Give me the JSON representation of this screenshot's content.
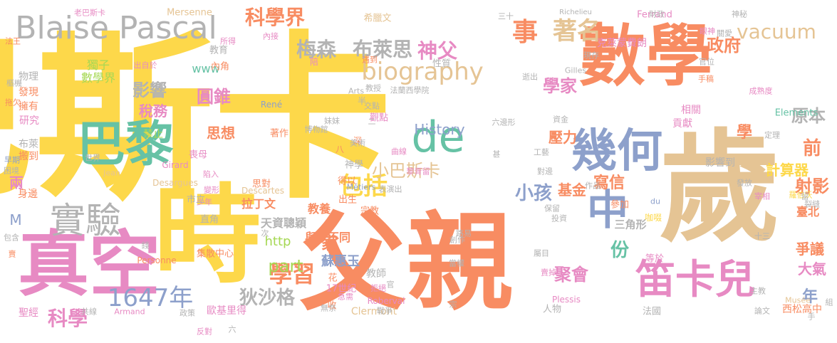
{
  "palette": {
    "yellow": "#fdd84a",
    "orange": "#f88c62",
    "pink": "#e78ac3",
    "blue": "#8da0cb",
    "tan": "#e5c494",
    "gray": "#b3b3b3",
    "green": "#66c2a5",
    "lime": "#a6d854"
  },
  "words": [
    {
      "text": "巴斯卡",
      "color": "yellow"
    },
    {
      "text": "數學",
      "color": "orange"
    },
    {
      "text": "歲",
      "color": "tan"
    },
    {
      "text": "父親",
      "color": "orange"
    },
    {
      "text": "時",
      "color": "yellow"
    },
    {
      "text": "真空",
      "color": "pink"
    },
    {
      "text": "巴黎",
      "color": "green"
    },
    {
      "text": "實驗",
      "color": "gray"
    },
    {
      "text": "Blaise Pascal",
      "color": "gray"
    },
    {
      "text": "幾何",
      "color": "blue"
    },
    {
      "text": "笛卡兒",
      "color": "pink"
    },
    {
      "text": "de",
      "color": "green"
    },
    {
      "text": "中",
      "color": "blue"
    },
    {
      "text": "biography",
      "color": "tan"
    },
    {
      "text": "1647年",
      "color": "blue"
    },
    {
      "text": "科學界",
      "color": "orange"
    },
    {
      "text": "梅森",
      "color": "gray"
    },
    {
      "text": "布萊思",
      "color": "gray"
    },
    {
      "text": "神父",
      "color": "pink"
    },
    {
      "text": "事",
      "color": "orange"
    },
    {
      "text": "著名",
      "color": "tan"
    },
    {
      "text": "政府",
      "color": "orange"
    },
    {
      "text": "vacuum",
      "color": "tan"
    },
    {
      "text": "包括",
      "color": "yellow"
    },
    {
      "text": "學習",
      "color": "orange"
    },
    {
      "text": "科學",
      "color": "pink"
    },
    {
      "text": "狄沙格",
      "color": "gray"
    },
    {
      "text": "part",
      "color": "lime"
    },
    {
      "text": "影響",
      "color": "gray"
    },
    {
      "text": "圓錐",
      "color": "pink"
    },
    {
      "text": "稅務",
      "color": "pink"
    },
    {
      "text": "數學界",
      "color": "lime"
    },
    {
      "text": "獨子",
      "color": "lime"
    },
    {
      "text": "學家",
      "color": "pink"
    },
    {
      "text": "小巴斯卡",
      "color": "tan"
    },
    {
      "text": "History",
      "color": "blue"
    },
    {
      "text": "小孩",
      "color": "blue"
    },
    {
      "text": "基金",
      "color": "orange"
    },
    {
      "text": "寫信",
      "color": "orange"
    },
    {
      "text": "原本",
      "color": "gray"
    },
    {
      "text": "計算器",
      "color": "yellow"
    },
    {
      "text": "前",
      "color": "orange"
    },
    {
      "text": "射影",
      "color": "orange"
    },
    {
      "text": "份",
      "color": "green"
    },
    {
      "text": "聚會",
      "color": "pink"
    },
    {
      "text": "爭議",
      "color": "orange"
    },
    {
      "text": "大氣",
      "color": "pink"
    },
    {
      "text": "年",
      "color": "blue"
    },
    {
      "text": "學",
      "color": "orange"
    },
    {
      "text": "壓力",
      "color": "orange"
    },
    {
      "text": "思想",
      "color": "orange"
    },
    {
      "text": "www",
      "color": "green"
    },
    {
      "text": "http",
      "color": "lime"
    },
    {
      "text": "家",
      "color": "orange"
    },
    {
      "text": "M",
      "color": "blue"
    },
    {
      "text": "兩",
      "color": "pink"
    },
    {
      "text": "蘇惠玉",
      "color": "blue"
    },
    {
      "text": "拉丁文",
      "color": "orange"
    },
    {
      "text": "教養",
      "color": "orange"
    },
    {
      "text": "天資聰穎",
      "color": "gray"
    },
    {
      "text": "與眾不同",
      "color": "orange"
    },
    {
      "text": "三角形",
      "color": "gray"
    },
    {
      "text": "西松高中",
      "color": "orange"
    },
    {
      "text": "臺北",
      "color": "orange"
    },
    {
      "text": "物理",
      "color": "gray"
    },
    {
      "text": "發現",
      "color": "orange"
    },
    {
      "text": "擁有",
      "color": "orange"
    },
    {
      "text": "研究",
      "color": "pink"
    },
    {
      "text": "布萊",
      "color": "gray"
    },
    {
      "text": "搬到",
      "color": "orange"
    },
    {
      "text": "身邊",
      "color": "orange"
    },
    {
      "text": "聖經",
      "color": "pink"
    },
    {
      "text": "歐基里得",
      "color": "pink"
    },
    {
      "text": "集散中心",
      "color": "orange"
    },
    {
      "text": "教師",
      "color": "gray"
    },
    {
      "text": "Clermont",
      "color": "tan"
    },
    {
      "text": "克萊蒙費朗",
      "color": "pink"
    },
    {
      "text": "影響到",
      "color": "gray"
    },
    {
      "text": "貢獻",
      "color": "pink"
    },
    {
      "text": "相關",
      "color": "pink"
    },
    {
      "text": "禁止",
      "color": "lime"
    },
    {
      "text": "內角",
      "color": "orange"
    },
    {
      "text": "教育",
      "color": "gray"
    },
    {
      "text": "直角",
      "color": "gray"
    },
    {
      "text": "喪母",
      "color": "pink"
    },
    {
      "text": "著作",
      "color": "orange"
    },
    {
      "text": "思對",
      "color": "orange"
    },
    {
      "text": "市立",
      "color": "gray"
    },
    {
      "text": "出生",
      "color": "orange"
    },
    {
      "text": "宗教",
      "color": "orange"
    },
    {
      "text": "花",
      "color": "orange"
    },
    {
      "text": "收",
      "color": "orange"
    },
    {
      "text": "17世紀",
      "color": "pink"
    },
    {
      "text": "人物",
      "color": "gray"
    },
    {
      "text": "法國",
      "color": "gray"
    },
    {
      "text": "等於",
      "color": "pink"
    },
    {
      "text": "觀點",
      "color": "pink"
    },
    {
      "text": "神學",
      "color": "gray"
    },
    {
      "text": "得以",
      "color": "orange"
    },
    {
      "text": "Ferrand",
      "color": "pink"
    },
    {
      "text": "Elements",
      "color": "green"
    },
    {
      "text": "Mersenne",
      "color": "tan"
    },
    {
      "text": "Richelieu",
      "color": "gray"
    },
    {
      "text": "Girard",
      "color": "pink"
    },
    {
      "text": "Descartes",
      "color": "tan"
    },
    {
      "text": "René",
      "color": "blue"
    },
    {
      "text": "Jean",
      "color": "tan"
    },
    {
      "text": "Desargues",
      "color": "tan"
    },
    {
      "text": "Roberval",
      "color": "pink"
    },
    {
      "text": "Plessis",
      "color": "pink"
    },
    {
      "text": "Armand",
      "color": "pink"
    },
    {
      "text": "Personne",
      "color": "orange"
    },
    {
      "text": "Arts",
      "color": "gray"
    },
    {
      "text": "Métiers",
      "color": "blue"
    },
    {
      "text": "Gilles",
      "color": "gray"
    },
    {
      "text": "Musée",
      "color": "tan"
    },
    {
      "text": "du",
      "color": "blue"
    },
    {
      "text": "希臘文",
      "color": "tan"
    },
    {
      "text": "性質",
      "color": "gray"
    },
    {
      "text": "參加",
      "color": "orange"
    },
    {
      "text": "咖啜",
      "color": "yellow"
    },
    {
      "text": "世界",
      "color": "gray"
    },
    {
      "text": "深",
      "color": "orange"
    },
    {
      "text": "八",
      "color": "orange"
    },
    {
      "text": "半",
      "color": "gray"
    },
    {
      "text": "二",
      "color": "gray"
    },
    {
      "text": "六",
      "color": "gray"
    },
    {
      "text": "陪",
      "color": "pink"
    },
    {
      "text": "老巴斯卡",
      "color": "pink"
    },
    {
      "text": "法王",
      "color": "orange"
    },
    {
      "text": "樞機",
      "color": "gray"
    },
    {
      "text": "拖欠",
      "color": "orange"
    },
    {
      "text": "早期",
      "color": "blue"
    },
    {
      "text": "困境",
      "color": "gray"
    },
    {
      "text": "包含",
      "color": "gray"
    },
    {
      "text": "賣",
      "color": "orange"
    },
    {
      "text": "出自於",
      "color": "pink"
    },
    {
      "text": "所得",
      "color": "pink"
    },
    {
      "text": "內接",
      "color": "pink"
    },
    {
      "text": "交點",
      "color": "gray"
    },
    {
      "text": "美術",
      "color": "gray"
    },
    {
      "text": "曲線",
      "color": "pink"
    },
    {
      "text": "表演出",
      "color": "gray"
    },
    {
      "text": "六邊形",
      "color": "gray"
    },
    {
      "text": "工藝",
      "color": "gray"
    },
    {
      "text": "對邊",
      "color": "gray"
    },
    {
      "text": "現存",
      "color": "gray"
    },
    {
      "text": "官位",
      "color": "gray"
    },
    {
      "text": "手稿",
      "color": "orange"
    },
    {
      "text": "成熟度",
      "color": "pink"
    },
    {
      "text": "定理",
      "color": "gray"
    },
    {
      "text": "發放",
      "color": "gray"
    },
    {
      "text": "宰相",
      "color": "pink"
    },
    {
      "text": "羅伯沃",
      "color": "yellow"
    },
    {
      "text": "組",
      "color": "gray"
    },
    {
      "text": "十三",
      "color": "gray"
    },
    {
      "text": "主教",
      "color": "gray"
    },
    {
      "text": "論文",
      "color": "gray"
    },
    {
      "text": "賣掉",
      "color": "pink"
    },
    {
      "text": "屬目",
      "color": "gray"
    },
    {
      "text": "當權",
      "color": "gray"
    },
    {
      "text": "創作",
      "color": "gray"
    },
    {
      "text": "路易",
      "color": "gray"
    },
    {
      "text": "保留",
      "color": "gray"
    },
    {
      "text": "投資",
      "color": "gray"
    },
    {
      "text": "作品",
      "color": "gray"
    },
    {
      "text": "急需",
      "color": "pink"
    },
    {
      "text": "戰爭",
      "color": "gray"
    },
    {
      "text": "無奈",
      "color": "gray"
    },
    {
      "text": "拒絕",
      "color": "pink"
    },
    {
      "text": "政策",
      "color": "gray"
    },
    {
      "text": "共線",
      "color": "gray"
    },
    {
      "text": "反對",
      "color": "pink"
    },
    {
      "text": "錢",
      "color": "gray"
    },
    {
      "text": "次",
      "color": "gray"
    },
    {
      "text": "變形",
      "color": "pink"
    },
    {
      "text": "陷入",
      "color": "pink"
    },
    {
      "text": "少年",
      "color": "pink"
    },
    {
      "text": "博物館",
      "color": "gray"
    },
    {
      "text": "妹妹",
      "color": "gray"
    },
    {
      "text": "遇到",
      "color": "orange"
    },
    {
      "text": "教授",
      "color": "gray"
    },
    {
      "text": "逝出",
      "color": "gray"
    },
    {
      "text": "資金",
      "color": "gray"
    },
    {
      "text": "財政",
      "color": "gray"
    },
    {
      "text": "眼神",
      "color": "pink"
    },
    {
      "text": "神秘",
      "color": "gray"
    },
    {
      "text": "關愛",
      "color": "gray"
    },
    {
      "text": "法蘭西學院",
      "color": "gray"
    },
    {
      "text": "三十",
      "color": "gray"
    },
    {
      "text": "甚",
      "color": "gray"
    },
    {
      "text": "留",
      "color": "gray"
    },
    {
      "text": "官",
      "color": "gray"
    },
    {
      "text": "宗",
      "color": "gray"
    },
    {
      "text": "手",
      "color": "gray"
    },
    {
      "text": "裂縫",
      "color": "gray"
    },
    {
      "text": "黎胥留",
      "color": "pink"
    }
  ]
}
